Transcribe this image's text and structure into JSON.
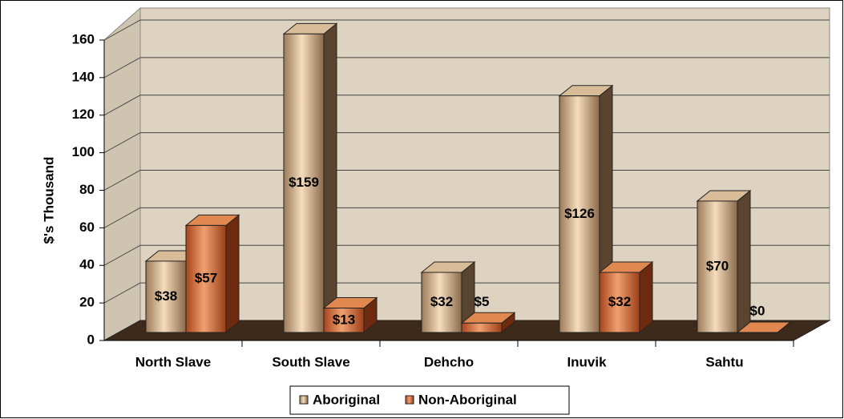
{
  "chart_data": {
    "type": "bar3d",
    "y_label": "$'s Thousand",
    "categories": [
      "North Slave",
      "South Slave",
      "Dehcho",
      "Inuvik",
      "Sahtu"
    ],
    "series": [
      {
        "name": "Aboriginal",
        "color": "#c49a6c",
        "values": [
          38,
          159,
          32,
          126,
          70
        ],
        "value_labels": [
          "$38",
          "$159",
          "$32",
          "$126",
          "$70"
        ]
      },
      {
        "name": "Non-Aboriginal",
        "color": "#c8622c",
        "values": [
          57,
          13,
          5,
          32,
          0
        ],
        "value_labels": [
          "$57",
          "$13",
          "$5",
          "$32",
          "$0"
        ]
      }
    ],
    "ylim": [
      0,
      160
    ],
    "yticks": [
      0,
      20,
      40,
      60,
      80,
      100,
      120,
      140,
      160
    ],
    "grid": true,
    "legend": "bottom"
  }
}
